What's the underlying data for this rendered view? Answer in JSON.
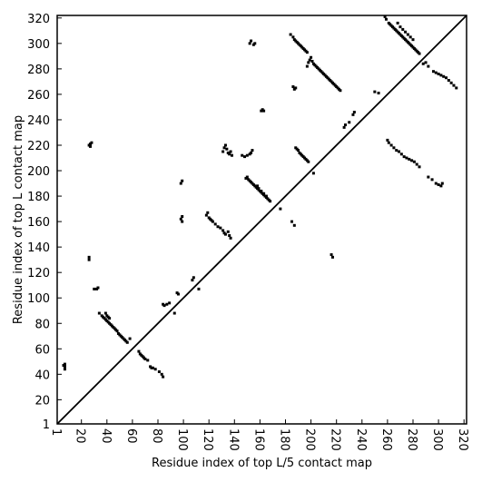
{
  "chart_data": {
    "type": "scatter",
    "title": "",
    "xlabel": "Residue index of top L/5 contact map",
    "ylabel": "Residue index of top L contact map",
    "xlim": [
      1,
      322
    ],
    "ylim": [
      1,
      322
    ],
    "xticks": [
      1,
      20,
      40,
      60,
      80,
      100,
      120,
      140,
      160,
      180,
      200,
      220,
      240,
      260,
      280,
      300,
      320
    ],
    "yticks": [
      1,
      20,
      40,
      60,
      80,
      100,
      120,
      140,
      160,
      180,
      200,
      220,
      240,
      260,
      280,
      300,
      320
    ],
    "xtick_rotation": -90,
    "diagonal": true,
    "marker_color": "#000000",
    "lower_triangle_points": [
      [
        26,
        220
      ],
      [
        27,
        221
      ],
      [
        27,
        219
      ],
      [
        28,
        222
      ],
      [
        26,
        130
      ],
      [
        26,
        132
      ],
      [
        30,
        107
      ],
      [
        32,
        107
      ],
      [
        33,
        108
      ],
      [
        7,
        44
      ],
      [
        7,
        46
      ],
      [
        7,
        48
      ],
      [
        6,
        47
      ],
      [
        34,
        88
      ],
      [
        36,
        86
      ],
      [
        37,
        85
      ],
      [
        38,
        84
      ],
      [
        39,
        83
      ],
      [
        40,
        82
      ],
      [
        41,
        81
      ],
      [
        42,
        80
      ],
      [
        43,
        79
      ],
      [
        44,
        78
      ],
      [
        45,
        77
      ],
      [
        46,
        76
      ],
      [
        47,
        75
      ],
      [
        48,
        74
      ],
      [
        49,
        72
      ],
      [
        50,
        71
      ],
      [
        51,
        70
      ],
      [
        52,
        69
      ],
      [
        53,
        68
      ],
      [
        54,
        67
      ],
      [
        55,
        66
      ],
      [
        56,
        65
      ],
      [
        58,
        68
      ],
      [
        39,
        88
      ],
      [
        40,
        86
      ],
      [
        41,
        85
      ],
      [
        42,
        84
      ],
      [
        65,
        58
      ],
      [
        66,
        56
      ],
      [
        67,
        55
      ],
      [
        68,
        54
      ],
      [
        69,
        53
      ],
      [
        70,
        52
      ],
      [
        72,
        51
      ],
      [
        74,
        46
      ],
      [
        75,
        45
      ],
      [
        76,
        45
      ],
      [
        78,
        44
      ],
      [
        81,
        42
      ],
      [
        83,
        40
      ],
      [
        84,
        38
      ],
      [
        84,
        95
      ],
      [
        85,
        94
      ],
      [
        87,
        95
      ],
      [
        89,
        96
      ],
      [
        95,
        104
      ],
      [
        96,
        103
      ],
      [
        93,
        88
      ],
      [
        98,
        162
      ],
      [
        99,
        160
      ],
      [
        99,
        164
      ],
      [
        98,
        190
      ],
      [
        99,
        192
      ],
      [
        107,
        114
      ],
      [
        108,
        116
      ],
      [
        112,
        107
      ],
      [
        118,
        165
      ],
      [
        119,
        167
      ],
      [
        120,
        163
      ],
      [
        121,
        162
      ],
      [
        122,
        161
      ],
      [
        123,
        160
      ],
      [
        125,
        158
      ],
      [
        127,
        156
      ],
      [
        129,
        155
      ],
      [
        131,
        153
      ],
      [
        132,
        151
      ],
      [
        133,
        150
      ],
      [
        135,
        152
      ],
      [
        136,
        149
      ],
      [
        137,
        147
      ],
      [
        131,
        215
      ],
      [
        132,
        218
      ],
      [
        133,
        220
      ],
      [
        134,
        217
      ],
      [
        135,
        214
      ],
      [
        136,
        213
      ],
      [
        137,
        215
      ],
      [
        138,
        212
      ],
      [
        146,
        212
      ],
      [
        148,
        211
      ],
      [
        150,
        212
      ],
      [
        152,
        213
      ],
      [
        153,
        214
      ],
      [
        154,
        216
      ],
      [
        149,
        194
      ],
      [
        150,
        195
      ],
      [
        151,
        193
      ],
      [
        152,
        192
      ],
      [
        153,
        191
      ],
      [
        154,
        190
      ],
      [
        155,
        189
      ],
      [
        156,
        188
      ],
      [
        157,
        187
      ],
      [
        158,
        186
      ],
      [
        159,
        185
      ],
      [
        160,
        184
      ],
      [
        161,
        183
      ],
      [
        162,
        182
      ],
      [
        163,
        181
      ],
      [
        164,
        180
      ],
      [
        165,
        179
      ],
      [
        166,
        178
      ],
      [
        167,
        177
      ],
      [
        168,
        176
      ],
      [
        158,
        188
      ],
      [
        159,
        186
      ],
      [
        161,
        184
      ],
      [
        163,
        182
      ],
      [
        165,
        180
      ],
      [
        152,
        300
      ],
      [
        153,
        302
      ],
      [
        155,
        299
      ],
      [
        156,
        300
      ],
      [
        161,
        247
      ],
      [
        162,
        248
      ],
      [
        163,
        247
      ],
      [
        176,
        170
      ],
      [
        185,
        160
      ],
      [
        187,
        157
      ],
      [
        186,
        266
      ],
      [
        187,
        264
      ],
      [
        188,
        265
      ],
      [
        188,
        218
      ],
      [
        189,
        217
      ],
      [
        190,
        216
      ],
      [
        191,
        214
      ],
      [
        192,
        213
      ],
      [
        193,
        212
      ],
      [
        194,
        211
      ],
      [
        195,
        210
      ],
      [
        196,
        209
      ],
      [
        197,
        208
      ],
      [
        198,
        207
      ],
      [
        184,
        307
      ],
      [
        186,
        305
      ],
      [
        187,
        303
      ],
      [
        188,
        302
      ],
      [
        189,
        301
      ],
      [
        190,
        300
      ],
      [
        191,
        299
      ],
      [
        192,
        298
      ],
      [
        193,
        297
      ],
      [
        194,
        296
      ],
      [
        195,
        295
      ],
      [
        196,
        294
      ],
      [
        197,
        293
      ],
      [
        197,
        282
      ],
      [
        198,
        285
      ],
      [
        199,
        287
      ],
      [
        200,
        289
      ],
      [
        201,
        286
      ],
      [
        202,
        284
      ],
      [
        203,
        283
      ],
      [
        204,
        282
      ],
      [
        205,
        281
      ],
      [
        206,
        280
      ],
      [
        207,
        279
      ],
      [
        208,
        278
      ],
      [
        209,
        277
      ],
      [
        210,
        276
      ],
      [
        211,
        275
      ],
      [
        212,
        274
      ],
      [
        213,
        273
      ],
      [
        214,
        272
      ],
      [
        215,
        271
      ],
      [
        216,
        270
      ],
      [
        217,
        269
      ],
      [
        218,
        268
      ],
      [
        219,
        267
      ],
      [
        220,
        266
      ],
      [
        221,
        265
      ],
      [
        222,
        264
      ],
      [
        223,
        263
      ],
      [
        202,
        198
      ],
      [
        216,
        134
      ],
      [
        217,
        132
      ],
      [
        226,
        234
      ],
      [
        227,
        236
      ],
      [
        230,
        238
      ],
      [
        233,
        244
      ],
      [
        234,
        246
      ],
      [
        250,
        262
      ],
      [
        253,
        261
      ],
      [
        258,
        321
      ],
      [
        259,
        319
      ],
      [
        261,
        316
      ],
      [
        262,
        315
      ],
      [
        263,
        314
      ],
      [
        264,
        313
      ],
      [
        265,
        312
      ],
      [
        266,
        311
      ],
      [
        267,
        310
      ],
      [
        268,
        309
      ],
      [
        269,
        308
      ],
      [
        270,
        307
      ],
      [
        271,
        306
      ],
      [
        272,
        305
      ],
      [
        273,
        304
      ],
      [
        274,
        303
      ],
      [
        275,
        302
      ],
      [
        276,
        301
      ],
      [
        277,
        300
      ],
      [
        278,
        299
      ],
      [
        279,
        298
      ],
      [
        280,
        297
      ],
      [
        281,
        296
      ],
      [
        282,
        295
      ],
      [
        283,
        294
      ],
      [
        284,
        293
      ],
      [
        285,
        292
      ],
      [
        268,
        316
      ],
      [
        270,
        313
      ],
      [
        272,
        311
      ],
      [
        274,
        309
      ],
      [
        276,
        307
      ],
      [
        278,
        305
      ],
      [
        280,
        303
      ],
      [
        260,
        224
      ],
      [
        261,
        222
      ],
      [
        263,
        220
      ],
      [
        265,
        218
      ],
      [
        267,
        216
      ],
      [
        269,
        215
      ],
      [
        271,
        213
      ],
      [
        273,
        211
      ],
      [
        275,
        210
      ],
      [
        277,
        209
      ],
      [
        279,
        208
      ],
      [
        281,
        207
      ],
      [
        283,
        205
      ],
      [
        285,
        203
      ],
      [
        288,
        284
      ],
      [
        290,
        285
      ],
      [
        292,
        282
      ],
      [
        292,
        195
      ],
      [
        295,
        193
      ],
      [
        298,
        190
      ],
      [
        300,
        189
      ],
      [
        302,
        188
      ],
      [
        303,
        190
      ],
      [
        296,
        278
      ],
      [
        298,
        277
      ],
      [
        300,
        276
      ],
      [
        302,
        275
      ],
      [
        304,
        274
      ],
      [
        306,
        273
      ],
      [
        308,
        271
      ],
      [
        310,
        269
      ],
      [
        312,
        267
      ],
      [
        314,
        265
      ]
    ]
  }
}
